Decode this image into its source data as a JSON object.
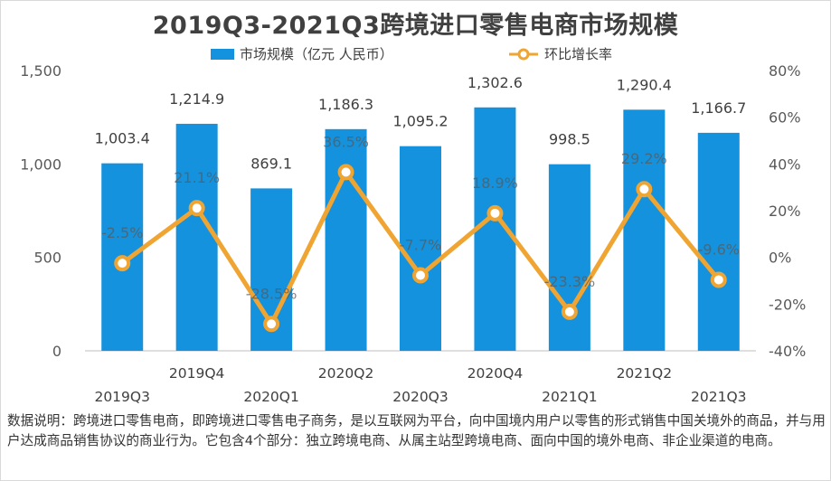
{
  "title": "2019Q3-2021Q3跨境进口零售电商市场规模",
  "legend": {
    "bar_label": "市场规模（亿元 人民币）",
    "line_label": "环比增长率"
  },
  "colors": {
    "bar": "#1592dd",
    "line": "#f0a431",
    "marker_fill": "#ffffff"
  },
  "chart_data": {
    "type": "bar",
    "categories": [
      "2019Q3",
      "2019Q4",
      "2020Q1",
      "2020Q2",
      "2020Q3",
      "2020Q4",
      "2021Q1",
      "2021Q2",
      "2021Q3"
    ],
    "series": [
      {
        "name": "市场规模（亿元 人民币）",
        "type": "bar",
        "axis": "left",
        "values": [
          1003.4,
          1214.9,
          869.1,
          1186.3,
          1095.2,
          1302.6,
          998.5,
          1290.4,
          1166.7
        ],
        "labels": [
          "1,003.4",
          "1,214.9",
          "869.1",
          "1,186.3",
          "1,095.2",
          "1,302.6",
          "998.5",
          "1,290.4",
          "1,166.7"
        ]
      },
      {
        "name": "环比增长率",
        "type": "line",
        "axis": "right",
        "values": [
          -2.5,
          21.1,
          -28.5,
          36.5,
          -7.7,
          18.9,
          -23.3,
          29.2,
          -9.6
        ],
        "labels": [
          "-2.5%",
          "21.1%",
          "-28.5%",
          "36.5%",
          "-7.7%",
          "18.9%",
          "-23.3%",
          "29.2%",
          "-9.6%"
        ]
      }
    ],
    "y_left": {
      "range": [
        0,
        1500
      ],
      "ticks": [
        0,
        500,
        1000,
        1500
      ],
      "tick_labels": [
        "0",
        "500",
        "1,000",
        "1,500"
      ]
    },
    "y_right": {
      "range": [
        -40,
        80
      ],
      "ticks": [
        -40,
        -20,
        0,
        20,
        40,
        60,
        80
      ],
      "tick_labels": [
        "-40%",
        "-20%",
        "0%",
        "20%",
        "40%",
        "60%",
        "80%"
      ]
    },
    "grid": false,
    "legend_position": "top"
  },
  "note": "数据说明：跨境进口零售电商，即跨境进口零售电子商务，是以互联网为平台，向中国境内用户以零售的形式销售中国关境外的商品，并与用户达成商品销售协议的商业行为。它包含4个部分：独立跨境电商、从属主站型跨境电商、面向中国的境外电商、非企业渠道的电商。"
}
